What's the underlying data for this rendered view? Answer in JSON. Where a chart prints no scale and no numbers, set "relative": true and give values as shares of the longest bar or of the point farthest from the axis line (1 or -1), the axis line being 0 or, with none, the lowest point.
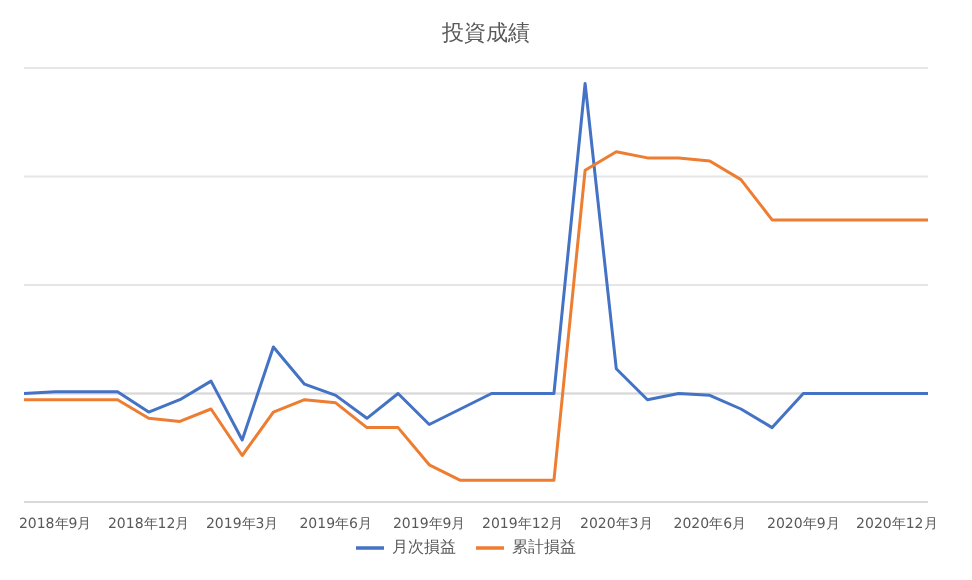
{
  "chart_data": {
    "type": "line",
    "title": "投資成績",
    "relative": true,
    "grid": "y",
    "legend": "bottom",
    "marker": "none",
    "categories": [
      null,
      "2018年9月",
      null,
      null,
      "2018年12月",
      null,
      null,
      "2019年3月",
      null,
      null,
      "2019年6月",
      null,
      null,
      "2019年9月",
      null,
      null,
      "2019年12月",
      null,
      null,
      "2020年3月",
      null,
      null,
      "2020年6月",
      null,
      null,
      "2020年9月",
      null,
      null,
      "2020年12月",
      null
    ],
    "series": [
      {
        "name": "月次損益",
        "color": "#4472c4",
        "values": [
          0,
          0.006,
          0.006,
          0.006,
          -0.06,
          -0.02,
          0.04,
          -0.15,
          0.15,
          0.03,
          -0.006,
          -0.08,
          0,
          -0.1,
          -0.05,
          0,
          0,
          0,
          1,
          0.08,
          -0.02,
          0,
          -0.006,
          -0.05,
          -0.11,
          0,
          0,
          0,
          0,
          0
        ]
      },
      {
        "name": "累計損益",
        "color": "#ed7d31",
        "values": [
          -0.02,
          -0.02,
          -0.02,
          -0.02,
          -0.08,
          -0.09,
          -0.05,
          -0.2,
          -0.06,
          -0.02,
          -0.03,
          -0.11,
          -0.11,
          -0.23,
          -0.28,
          -0.28,
          -0.28,
          -0.28,
          0.72,
          0.78,
          0.76,
          0.76,
          0.75,
          0.69,
          0.56,
          0.56,
          0.56,
          0.56,
          0.56,
          0.56
        ]
      }
    ]
  }
}
